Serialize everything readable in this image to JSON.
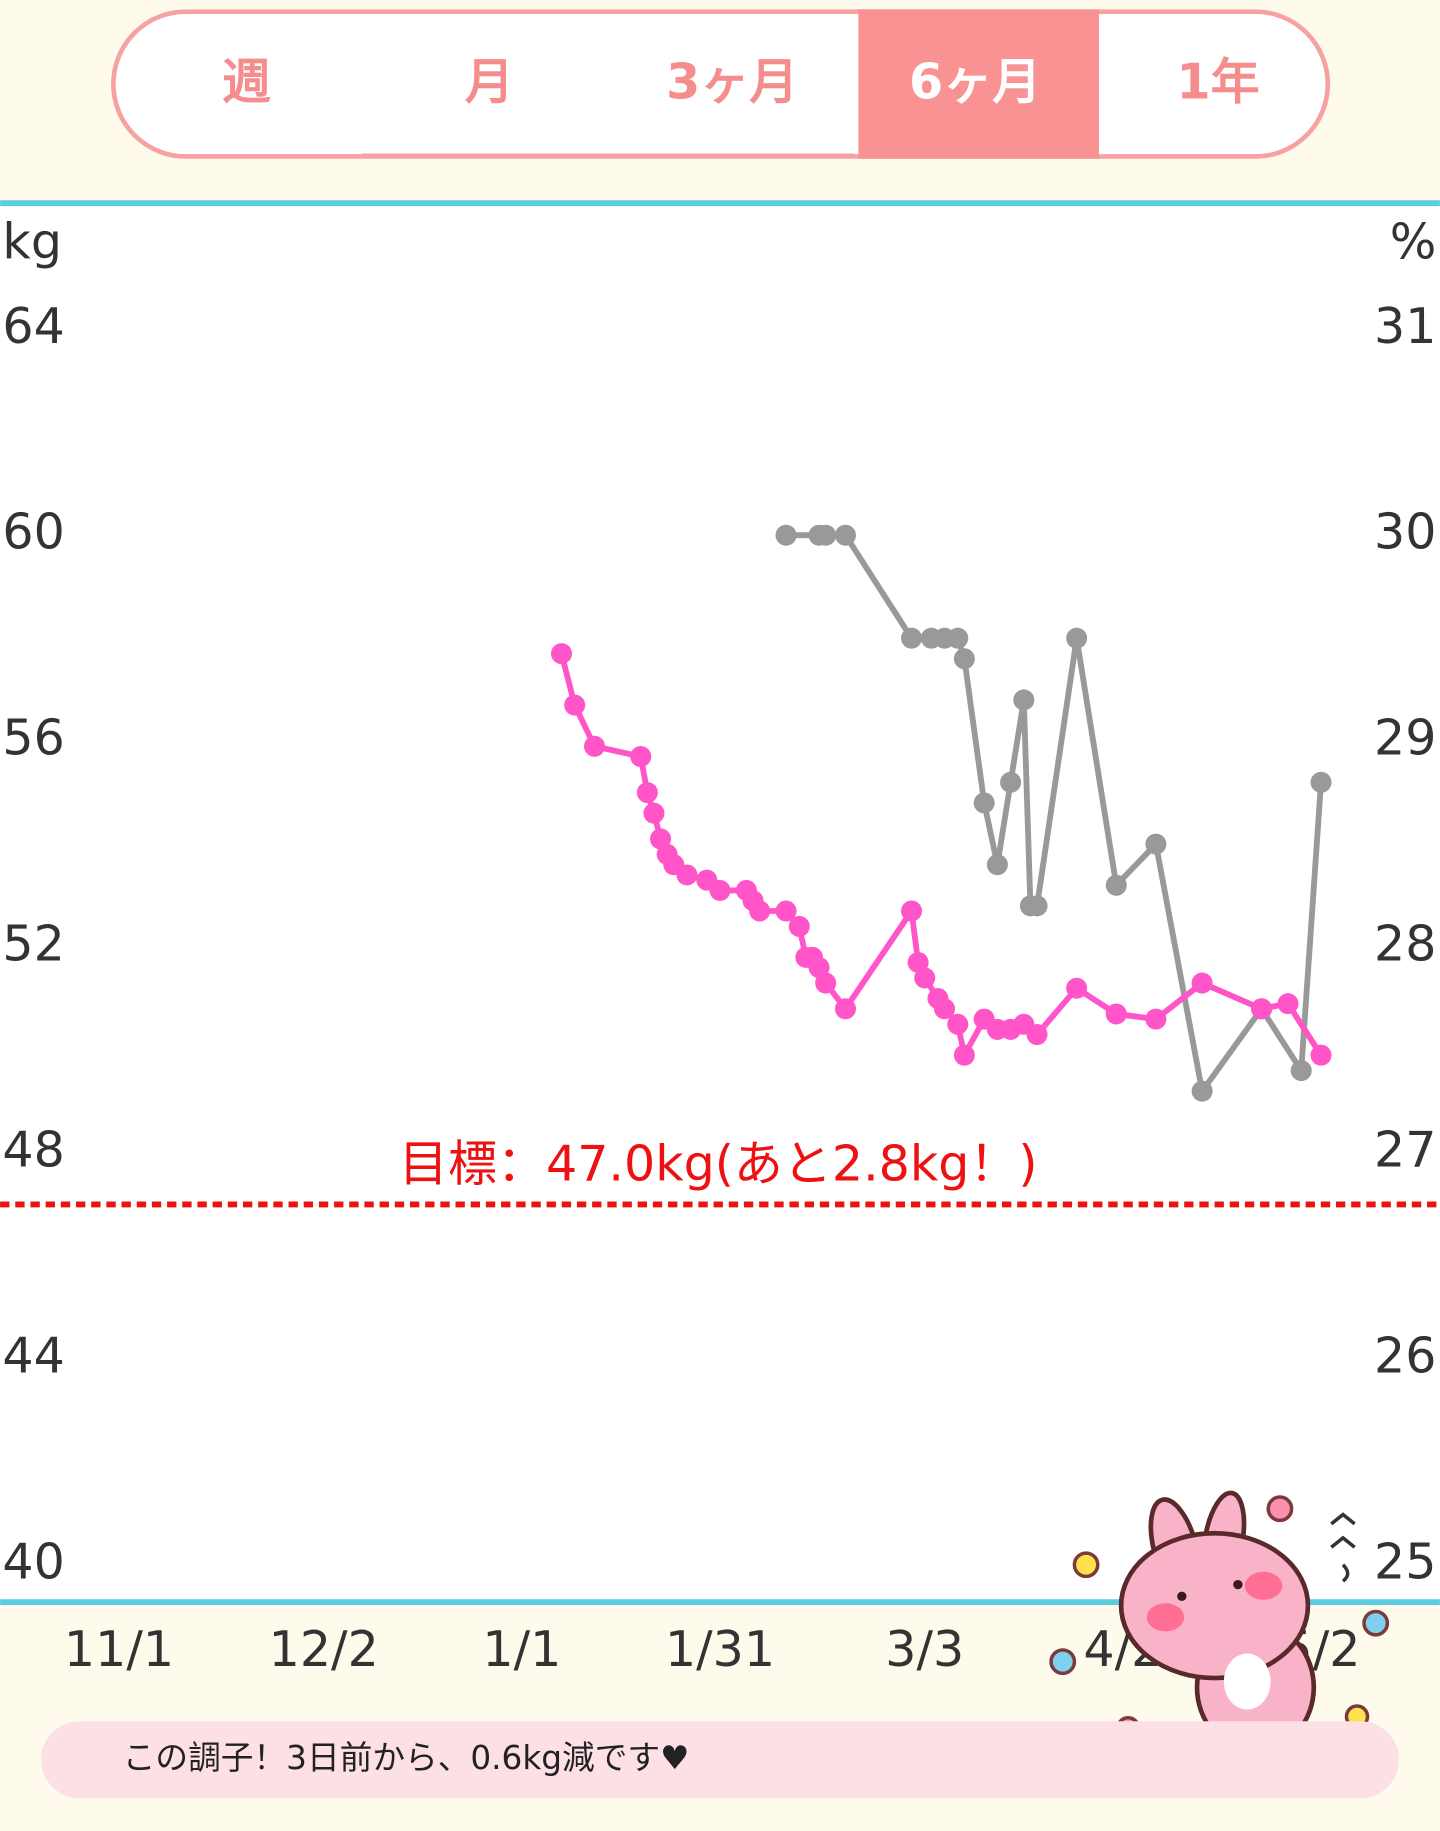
{
  "tabs": {
    "items": [
      "週",
      "月",
      "3ヶ月",
      "6ヶ月",
      "1年"
    ],
    "selected": 3
  },
  "chart_data": {
    "type": "line",
    "y_label": "kg",
    "y2_label": "%",
    "xlim": [
      -18,
      200
    ],
    "xticks": [
      {
        "value": 0,
        "label": "11/1"
      },
      {
        "value": 31,
        "label": "12/2"
      },
      {
        "value": 61,
        "label": "1/1"
      },
      {
        "value": 91,
        "label": "1/31"
      },
      {
        "value": 122,
        "label": "3/3"
      },
      {
        "value": 152,
        "label": "4/2"
      },
      {
        "value": 182,
        "label": "5/2"
      }
    ],
    "ylim": [
      40,
      64
    ],
    "yticks": [
      40,
      44,
      48,
      52,
      56,
      60,
      64
    ],
    "y2lim": [
      25,
      31
    ],
    "y2ticks": [
      25,
      26,
      27,
      28,
      29,
      30,
      31
    ],
    "series": [
      {
        "color": "#ff55c8",
        "x": [
          67,
          69,
          72,
          79,
          80,
          81,
          82,
          83,
          84,
          86,
          89,
          91,
          95,
          96,
          97,
          101,
          103,
          104,
          105,
          106,
          107,
          110,
          120,
          121,
          122,
          124,
          125,
          127,
          128,
          131,
          133,
          135,
          137,
          139,
          145,
          151,
          157,
          164,
          173,
          177,
          182
        ],
        "values": [
          57.7,
          56.7,
          55.9,
          55.7,
          55.0,
          54.6,
          54.1,
          53.8,
          53.6,
          53.4,
          53.3,
          53.1,
          53.1,
          52.9,
          52.7,
          52.7,
          52.4,
          51.8,
          51.8,
          51.6,
          51.3,
          50.8,
          52.7,
          51.7,
          51.4,
          51.0,
          50.8,
          50.5,
          49.9,
          50.6,
          50.4,
          50.4,
          50.5,
          50.3,
          51.2,
          50.7,
          50.6,
          51.3,
          50.8,
          50.9,
          49.9
        ]
      },
      {
        "color": "#999999",
        "axis": "y2",
        "x": [
          101,
          106,
          107,
          110,
          120,
          123,
          125,
          127,
          128,
          131,
          133,
          135,
          137,
          138,
          139,
          145,
          151,
          157,
          164,
          173,
          179,
          182
        ],
        "values": [
          30.0,
          30.0,
          30.0,
          30.0,
          29.5,
          29.5,
          29.5,
          29.5,
          29.4,
          28.7,
          28.4,
          28.8,
          29.2,
          28.2,
          28.2,
          29.5,
          28.3,
          28.5,
          27.3,
          27.7,
          27.4,
          28.8
        ]
      }
    ],
    "annotation": {
      "text": "目標：47.0kg(あと2.8kg！)",
      "value": 47.0,
      "color": "#ee1111"
    }
  },
  "footer": {
    "message": "この調子！3日前から、0.6kg減です♥"
  }
}
